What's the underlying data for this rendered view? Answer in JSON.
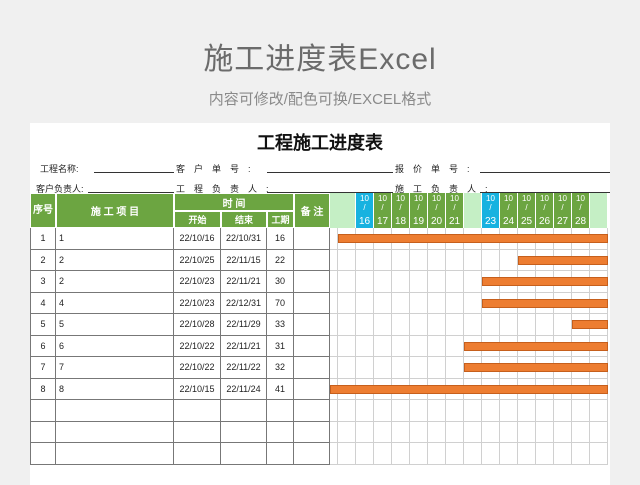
{
  "page": {
    "title": "施工进度表Excel",
    "subtitle": "内容可修改/配色可换/EXCEL格式"
  },
  "sheet": {
    "title": "工程施工进度表",
    "meta": {
      "project_name": "工程名称:",
      "client_no": "客　户　单　号　:",
      "quote_no": "报　价　单　号　:",
      "client_contact": "客户负责人:",
      "project_lead": "工　程　负　责　人　:",
      "construction_lead": "施　工　负　责　人　:"
    },
    "headers": {
      "seq": "序号",
      "item": "施 工 项 目",
      "time": "时 间",
      "start": "开始",
      "end": "结束",
      "duration": "工期",
      "note": "备 注"
    },
    "days": [
      {
        "month": "",
        "day": "",
        "color": "#c5efc5"
      },
      {
        "month": "10",
        "day": "16",
        "color": "#17b2e0"
      },
      {
        "month": "10",
        "day": "17",
        "color": "#6ca541"
      },
      {
        "month": "10",
        "day": "18",
        "color": "#6ca541"
      },
      {
        "month": "10",
        "day": "19",
        "color": "#6ca541"
      },
      {
        "month": "10",
        "day": "20",
        "color": "#6ca541"
      },
      {
        "month": "10",
        "day": "21",
        "color": "#6ca541"
      },
      {
        "month": "",
        "day": "",
        "color": "#c5efc5"
      },
      {
        "month": "10",
        "day": "23",
        "color": "#17b2e0"
      },
      {
        "month": "10",
        "day": "24",
        "color": "#6ca541"
      },
      {
        "month": "10",
        "day": "25",
        "color": "#6ca541"
      },
      {
        "month": "10",
        "day": "26",
        "color": "#6ca541"
      },
      {
        "month": "10",
        "day": "27",
        "color": "#6ca541"
      },
      {
        "month": "10",
        "day": "28",
        "color": "#6ca541"
      },
      {
        "month": "",
        "day": "",
        "color": "#c5efc5"
      }
    ],
    "rows": [
      {
        "seq": "1",
        "item": "1",
        "start": "22/10/16",
        "end": "22/10/31",
        "duration": "16",
        "bar_from_day": "16"
      },
      {
        "seq": "2",
        "item": "2",
        "start": "22/10/25",
        "end": "22/11/15",
        "duration": "22",
        "bar_from_day": "25"
      },
      {
        "seq": "3",
        "item": "2",
        "start": "22/10/23",
        "end": "22/11/21",
        "duration": "30",
        "bar_from_day": "23"
      },
      {
        "seq": "4",
        "item": "4",
        "start": "22/10/23",
        "end": "22/12/31",
        "duration": "70",
        "bar_from_day": "23"
      },
      {
        "seq": "5",
        "item": "5",
        "start": "22/10/28",
        "end": "22/11/29",
        "duration": "33",
        "bar_from_day": "28"
      },
      {
        "seq": "6",
        "item": "6",
        "start": "22/10/22",
        "end": "22/11/21",
        "duration": "31",
        "bar_from_day": "22"
      },
      {
        "seq": "7",
        "item": "7",
        "start": "22/10/22",
        "end": "22/11/22",
        "duration": "32",
        "bar_from_day": "22"
      },
      {
        "seq": "8",
        "item": "8",
        "start": "22/10/15",
        "end": "22/11/24",
        "duration": "41",
        "bar_from_day": "15"
      },
      {
        "seq": "",
        "item": "",
        "start": "",
        "end": "",
        "duration": "",
        "bar_from_day": ""
      },
      {
        "seq": "",
        "item": "",
        "start": "",
        "end": "",
        "duration": "",
        "bar_from_day": ""
      },
      {
        "seq": "",
        "item": "",
        "start": "",
        "end": "",
        "duration": "",
        "bar_from_day": ""
      }
    ],
    "colors": {
      "header": "#6ca541",
      "today": "#17b2e0",
      "weekend": "#c5efc5",
      "bar": "#ed7d31"
    }
  }
}
